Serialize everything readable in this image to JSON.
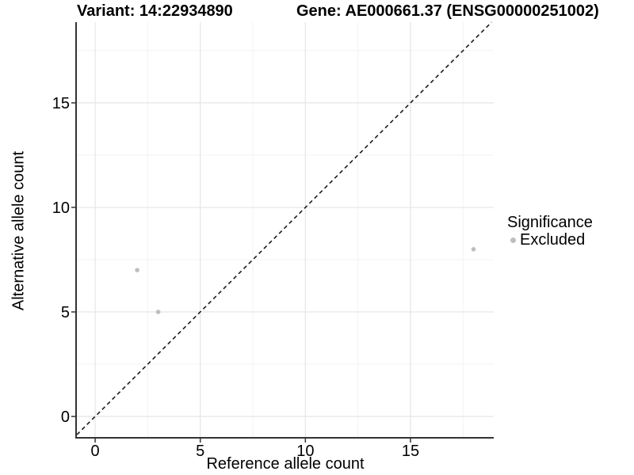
{
  "chart_data": {
    "type": "scatter",
    "title_left": "Variant: 14:22934890",
    "title_right": "Gene: AE000661.37 (ENSG00000251002)",
    "xlabel": "Reference allele count",
    "ylabel": "Alternative allele count",
    "x_axis": {
      "ticks": [
        0,
        5,
        10,
        15
      ],
      "minor_ticks": [
        2.5,
        7.5,
        12.5,
        17.5
      ],
      "range": [
        -0.87,
        18.96
      ]
    },
    "y_axis": {
      "ticks": [
        0,
        5,
        10,
        15
      ],
      "minor_ticks": [
        2.5,
        7.5,
        12.5,
        17.5
      ],
      "range": [
        -1.02,
        18.86
      ]
    },
    "series": [
      {
        "name": "Excluded",
        "color": "#bebebe",
        "marker_radius": 2.8,
        "points": [
          {
            "x": 2,
            "y": 7
          },
          {
            "x": 3,
            "y": 5
          },
          {
            "x": 18,
            "y": 8
          }
        ]
      }
    ],
    "identity_line": {
      "style": "dashed",
      "equation": "y = x",
      "color": "#1a1a1a"
    },
    "legend": {
      "title": "Significance",
      "position": "right",
      "items": [
        {
          "label": "Excluded",
          "color": "#bebebe"
        }
      ]
    },
    "grid": {
      "major_color": "#e7e7e7",
      "minor_color": "#f3f3f3"
    },
    "axis_color": "#333333",
    "tick_color": "#333333",
    "text_color": "#000000"
  }
}
